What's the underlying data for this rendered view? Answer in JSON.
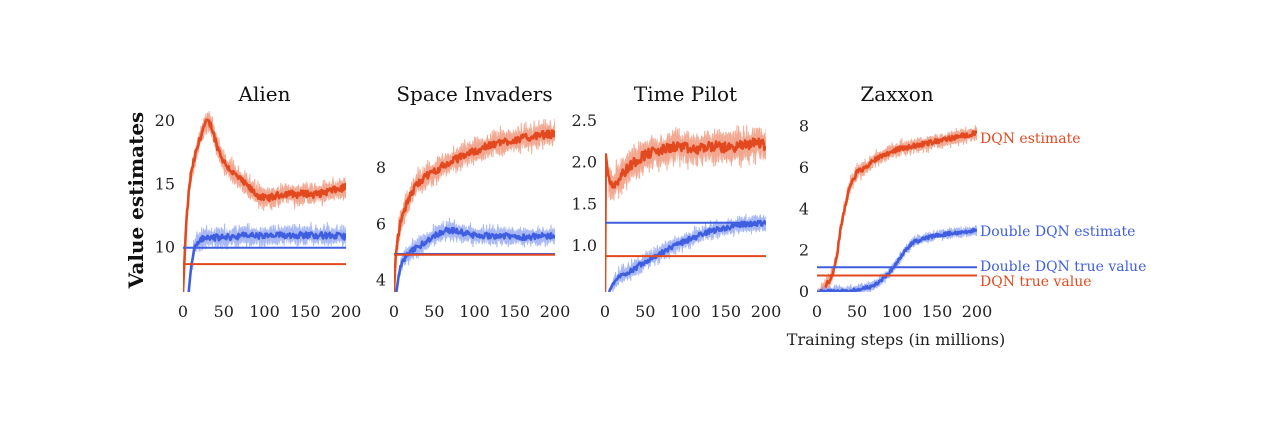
{
  "figure": {
    "ylabel": "Value estimates",
    "xlabel": "Training steps (in millions)"
  },
  "colors": {
    "dqn": "#e2491f",
    "dqn_band": "#f2a48c",
    "double": "#3f5fe0",
    "double_band": "#a3b4f5"
  },
  "chart_data": [
    {
      "type": "line",
      "title": "Alien",
      "xlim": [
        0,
        200
      ],
      "ylim": [
        6.5,
        21.2
      ],
      "xticks": [
        "0",
        "50",
        "100",
        "150",
        "200"
      ],
      "xtick_values": [
        0,
        50,
        100,
        150,
        200
      ],
      "yticks": [
        "10",
        "15",
        "20"
      ],
      "ytick_values": [
        10,
        15,
        20
      ],
      "series": [
        {
          "key": "dqn_estimate",
          "noise": 0.6,
          "points": [
            [
              0,
              6.5
            ],
            [
              4,
              12
            ],
            [
              8,
              15
            ],
            [
              12,
              16.5
            ],
            [
              18,
              18
            ],
            [
              25,
              19.5
            ],
            [
              30,
              20
            ],
            [
              35,
              19.6
            ],
            [
              42,
              18
            ],
            [
              50,
              16.8
            ],
            [
              60,
              16
            ],
            [
              70,
              15.4
            ],
            [
              80,
              14.8
            ],
            [
              90,
              14.2
            ],
            [
              100,
              13.9
            ],
            [
              110,
              14
            ],
            [
              120,
              14.2
            ],
            [
              130,
              14.3
            ],
            [
              140,
              14.2
            ],
            [
              150,
              14.3
            ],
            [
              160,
              14.2
            ],
            [
              170,
              14.3
            ],
            [
              180,
              14.5
            ],
            [
              190,
              14.6
            ],
            [
              200,
              14.8
            ]
          ]
        },
        {
          "key": "double_estimate",
          "noise": 0.55,
          "points": [
            [
              7,
              6.5
            ],
            [
              10,
              8.5
            ],
            [
              14,
              10
            ],
            [
              20,
              10.6
            ],
            [
              30,
              10.8
            ],
            [
              50,
              10.8
            ],
            [
              80,
              11
            ],
            [
              100,
              10.9
            ],
            [
              130,
              11
            ],
            [
              160,
              11
            ],
            [
              200,
              10.9
            ]
          ]
        },
        {
          "key": "double_true",
          "points": [
            [
              0,
              10
            ],
            [
              200,
              10
            ]
          ]
        },
        {
          "key": "dqn_true",
          "points": [
            [
              0,
              8.7
            ],
            [
              200,
              8.7
            ]
          ]
        }
      ]
    },
    {
      "type": "line",
      "title": "Space Invaders",
      "xlim": [
        0,
        200
      ],
      "ylim": [
        3.6,
        10.2
      ],
      "xticks": [
        "0",
        "50",
        "100",
        "150",
        "200"
      ],
      "xtick_values": [
        0,
        50,
        100,
        150,
        200
      ],
      "yticks": [
        "4",
        "6",
        "8"
      ],
      "ytick_values": [
        4,
        6,
        8
      ],
      "series": [
        {
          "key": "dqn_estimate",
          "noise": 0.3,
          "points": [
            [
              0,
              3.6
            ],
            [
              2,
              4.8
            ],
            [
              5,
              5.6
            ],
            [
              10,
              6.3
            ],
            [
              20,
              7
            ],
            [
              30,
              7.5
            ],
            [
              50,
              7.9
            ],
            [
              70,
              8.2
            ],
            [
              90,
              8.5
            ],
            [
              110,
              8.7
            ],
            [
              130,
              8.9
            ],
            [
              150,
              9
            ],
            [
              170,
              9.1
            ],
            [
              190,
              9.2
            ],
            [
              200,
              9.2
            ]
          ]
        },
        {
          "key": "double_estimate",
          "noise": 0.22,
          "points": [
            [
              3,
              3.6
            ],
            [
              6,
              4.2
            ],
            [
              10,
              4.7
            ],
            [
              20,
              5
            ],
            [
              35,
              5.3
            ],
            [
              50,
              5.6
            ],
            [
              65,
              5.8
            ],
            [
              80,
              5.75
            ],
            [
              100,
              5.6
            ],
            [
              130,
              5.6
            ],
            [
              160,
              5.55
            ],
            [
              200,
              5.6
            ]
          ]
        },
        {
          "key": "double_true",
          "points": [
            [
              0,
              4.95
            ],
            [
              200,
              4.95
            ]
          ]
        },
        {
          "key": "dqn_true",
          "points": [
            [
              0,
              4.92
            ],
            [
              200,
              4.92
            ]
          ]
        }
      ]
    },
    {
      "type": "line",
      "title": "Time Pilot",
      "xlim": [
        0,
        200
      ],
      "ylim": [
        0.45,
        2.68
      ],
      "xticks": [
        "0",
        "50",
        "100",
        "150",
        "200"
      ],
      "xtick_values": [
        0,
        50,
        100,
        150,
        200
      ],
      "yticks": [
        "1.0",
        "1.5",
        "2.0",
        "2.5"
      ],
      "ytick_values": [
        1.0,
        1.5,
        2.0,
        2.5
      ],
      "series": [
        {
          "key": "dqn_estimate",
          "noise": 0.14,
          "points": [
            [
              0,
              0.45
            ],
            [
              1,
              2.1
            ],
            [
              4,
              1.85
            ],
            [
              10,
              1.72
            ],
            [
              20,
              1.85
            ],
            [
              35,
              2
            ],
            [
              50,
              2.1
            ],
            [
              70,
              2.15
            ],
            [
              90,
              2.2
            ],
            [
              110,
              2.15
            ],
            [
              130,
              2.2
            ],
            [
              150,
              2.18
            ],
            [
              170,
              2.2
            ],
            [
              190,
              2.25
            ],
            [
              200,
              2.2
            ]
          ]
        },
        {
          "key": "double_estimate",
          "noise": 0.07,
          "points": [
            [
              5,
              0.45
            ],
            [
              10,
              0.55
            ],
            [
              20,
              0.65
            ],
            [
              35,
              0.72
            ],
            [
              50,
              0.82
            ],
            [
              70,
              0.92
            ],
            [
              90,
              1.02
            ],
            [
              110,
              1.1
            ],
            [
              130,
              1.18
            ],
            [
              150,
              1.22
            ],
            [
              170,
              1.26
            ],
            [
              200,
              1.28
            ]
          ]
        },
        {
          "key": "double_true",
          "points": [
            [
              0,
              1.28
            ],
            [
              200,
              1.28
            ]
          ]
        },
        {
          "key": "dqn_true",
          "points": [
            [
              0,
              0.88
            ],
            [
              200,
              0.88
            ]
          ]
        }
      ]
    },
    {
      "type": "line",
      "title": "Zaxxon",
      "xlim": [
        0,
        200
      ],
      "ylim": [
        0,
        9
      ],
      "xticks": [
        "0",
        "50",
        "100",
        "150",
        "200"
      ],
      "xtick_values": [
        0,
        50,
        100,
        150,
        200
      ],
      "yticks": [
        "0",
        "2",
        "4",
        "6",
        "8"
      ],
      "ytick_values": [
        0,
        2,
        4,
        6,
        8
      ],
      "series": [
        {
          "key": "dqn_estimate",
          "noise": 0.25,
          "points": [
            [
              0,
              0
            ],
            [
              10,
              0.2
            ],
            [
              20,
              0.9
            ],
            [
              25,
              1.8
            ],
            [
              30,
              3.2
            ],
            [
              40,
              5
            ],
            [
              50,
              5.8
            ],
            [
              60,
              6
            ],
            [
              75,
              6.5
            ],
            [
              100,
              6.9
            ],
            [
              125,
              7.1
            ],
            [
              150,
              7.3
            ],
            [
              175,
              7.5
            ],
            [
              200,
              7.7
            ]
          ]
        },
        {
          "key": "double_estimate",
          "noise": 0.18,
          "points": [
            [
              0,
              0
            ],
            [
              40,
              0.05
            ],
            [
              70,
              0.25
            ],
            [
              90,
              0.9
            ],
            [
              100,
              1.4
            ],
            [
              110,
              2
            ],
            [
              120,
              2.4
            ],
            [
              135,
              2.6
            ],
            [
              150,
              2.75
            ],
            [
              170,
              2.85
            ],
            [
              200,
              3
            ]
          ]
        },
        {
          "key": "double_true",
          "points": [
            [
              0,
              1.2
            ],
            [
              200,
              1.2
            ]
          ]
        },
        {
          "key": "dqn_true",
          "points": [
            [
              0,
              0.8
            ],
            [
              200,
              0.8
            ]
          ]
        }
      ]
    }
  ],
  "annotations": {
    "dqn_estimate": "DQN estimate",
    "double_estimate": "Double DQN estimate",
    "double_true": "Double DQN true value",
    "dqn_true": "DQN true value"
  }
}
